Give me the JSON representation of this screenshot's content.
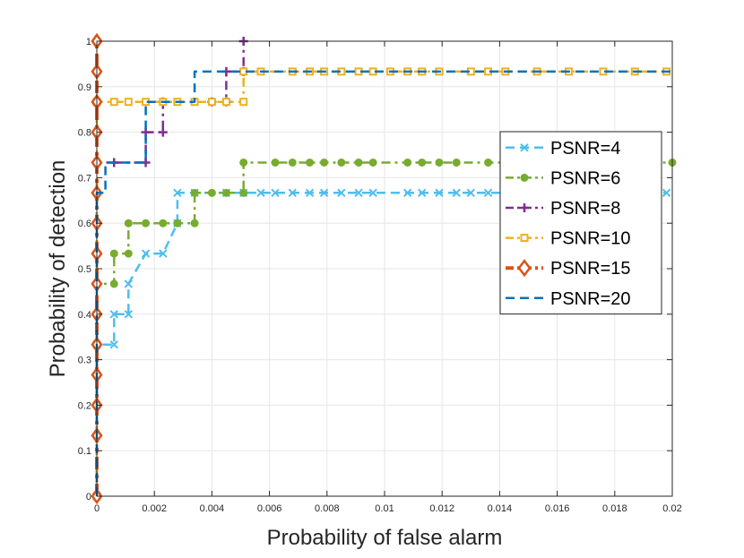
{
  "chart_data": {
    "type": "line",
    "xlabel": "Probability of false alarm",
    "ylabel": "Probability of detection",
    "xlim": [
      0,
      0.02
    ],
    "ylim": [
      0,
      1
    ],
    "grid": true,
    "legend_position": "right",
    "x_ticks": [
      "0",
      "0.002",
      "0.004",
      "0.006",
      "0.008",
      "0.01",
      "0.012",
      "0.014",
      "0.016",
      "0.018",
      "0.02"
    ],
    "y_ticks": [
      "0",
      "0.1",
      "0.2",
      "0.3",
      "0.4",
      "0.5",
      "0.6",
      "0.7",
      "0.8",
      "0.9",
      "1"
    ],
    "series": [
      {
        "name": "PSNR=4",
        "color": "#4DBEEE",
        "marker": "x",
        "dash": "dash",
        "x": [
          0,
          0,
          0.0006,
          0.0006,
          0.0011,
          0.0011,
          0.0017,
          0.0023,
          0.0028,
          0.0028,
          0.0034,
          0.0045,
          0.0051,
          0.0057,
          0.0062,
          0.0068,
          0.0074,
          0.0079,
          0.0085,
          0.0091,
          0.0096,
          0.0108,
          0.0113,
          0.0119,
          0.0125,
          0.013,
          0.0136,
          0.0142,
          0.0147,
          0.0153,
          0.0159,
          0.0164,
          0.017,
          0.0176,
          0.0181,
          0.0187,
          0.0193,
          0.0198
        ],
        "y": [
          0,
          0.3333,
          0.3333,
          0.4,
          0.4,
          0.4667,
          0.5333,
          0.5333,
          0.6,
          0.6667,
          0.6667,
          0.6667,
          0.6667,
          0.6667,
          0.6667,
          0.6667,
          0.6667,
          0.6667,
          0.6667,
          0.6667,
          0.6667,
          0.6667,
          0.6667,
          0.6667,
          0.6667,
          0.6667,
          0.6667,
          0.6667,
          0.6667,
          0.6667,
          0.6667,
          0.6667,
          0.6667,
          0.6667,
          0.6667,
          0.6667,
          0.6667,
          0.6667
        ]
      },
      {
        "name": "PSNR=6",
        "color": "#77AC30",
        "marker": "circle",
        "dash": "dashdot",
        "x": [
          0,
          0,
          0.0006,
          0.0006,
          0.0011,
          0.0011,
          0.0017,
          0.0023,
          0.0028,
          0.0034,
          0.0034,
          0.004,
          0.0045,
          0.0051,
          0.0051,
          0.0062,
          0.0068,
          0.0074,
          0.0079,
          0.0085,
          0.0091,
          0.0096,
          0.0108,
          0.0113,
          0.0119,
          0.0125,
          0.0136,
          0.0147,
          0.0159,
          0.017,
          0.0181,
          0.0193,
          0.02
        ],
        "y": [
          0,
          0.4667,
          0.4667,
          0.5333,
          0.5333,
          0.6,
          0.6,
          0.6,
          0.6,
          0.6,
          0.6667,
          0.6667,
          0.6667,
          0.6667,
          0.7333,
          0.7333,
          0.7333,
          0.7333,
          0.7333,
          0.7333,
          0.7333,
          0.7333,
          0.7333,
          0.7333,
          0.7333,
          0.7333,
          0.7333,
          0.7333,
          0.7333,
          0.7333,
          0.7333,
          0.7333,
          0.7333
        ]
      },
      {
        "name": "PSNR=8",
        "color": "#7E2F8E",
        "marker": "plus",
        "dash": "dashdot",
        "x": [
          0,
          0,
          0.0006,
          0.0017,
          0.0017,
          0.0023,
          0.0023,
          0.004,
          0.0045,
          0.0045,
          0.0051,
          0.0051
        ],
        "y": [
          0,
          0.7333,
          0.7333,
          0.7333,
          0.8,
          0.8,
          0.8667,
          0.8667,
          0.8667,
          0.9333,
          0.9333,
          1.0
        ]
      },
      {
        "name": "PSNR=10",
        "color": "#EDB120",
        "marker": "square",
        "dash": "dashdot",
        "x": [
          0,
          0,
          0.0006,
          0.0011,
          0.0017,
          0.0023,
          0.0028,
          0.0034,
          0.004,
          0.0045,
          0.0051,
          0.0051,
          0.0057,
          0.0068,
          0.0074,
          0.0079,
          0.0085,
          0.0091,
          0.0096,
          0.0102,
          0.0108,
          0.0113,
          0.0119,
          0.013,
          0.0136,
          0.0142,
          0.0153,
          0.0164,
          0.0176,
          0.0187,
          0.0198
        ],
        "y": [
          0,
          0.8667,
          0.8667,
          0.8667,
          0.8667,
          0.8667,
          0.8667,
          0.8667,
          0.8667,
          0.8667,
          0.8667,
          0.9333,
          0.9333,
          0.9333,
          0.9333,
          0.9333,
          0.9333,
          0.9333,
          0.9333,
          0.9333,
          0.9333,
          0.9333,
          0.9333,
          0.9333,
          0.9333,
          0.9333,
          0.9333,
          0.9333,
          0.9333,
          0.9333,
          0.9333
        ]
      },
      {
        "name": "PSNR=15",
        "color": "#D95319",
        "marker": "diamond",
        "dash": "dashdot",
        "x": [
          0,
          0,
          0,
          0,
          0,
          0,
          0,
          0,
          0,
          0,
          0,
          0,
          0,
          0,
          0,
          0
        ],
        "y": [
          0,
          0.1333,
          0.2,
          0.2667,
          0.3333,
          0.4,
          0.4667,
          0.5333,
          0.6,
          0.6667,
          0.7333,
          0.8,
          0.8667,
          0.9333,
          1.0,
          1.0
        ]
      },
      {
        "name": "PSNR=20",
        "color": "#0072BD",
        "marker": "none",
        "dash": "dash",
        "x": [
          0,
          0,
          0.0003,
          0.0003,
          0.0017,
          0.0017,
          0.0034,
          0.0034,
          0.02
        ],
        "y": [
          0,
          0.6667,
          0.6667,
          0.7333,
          0.7333,
          0.8667,
          0.8667,
          0.9333,
          0.9333
        ]
      }
    ]
  }
}
